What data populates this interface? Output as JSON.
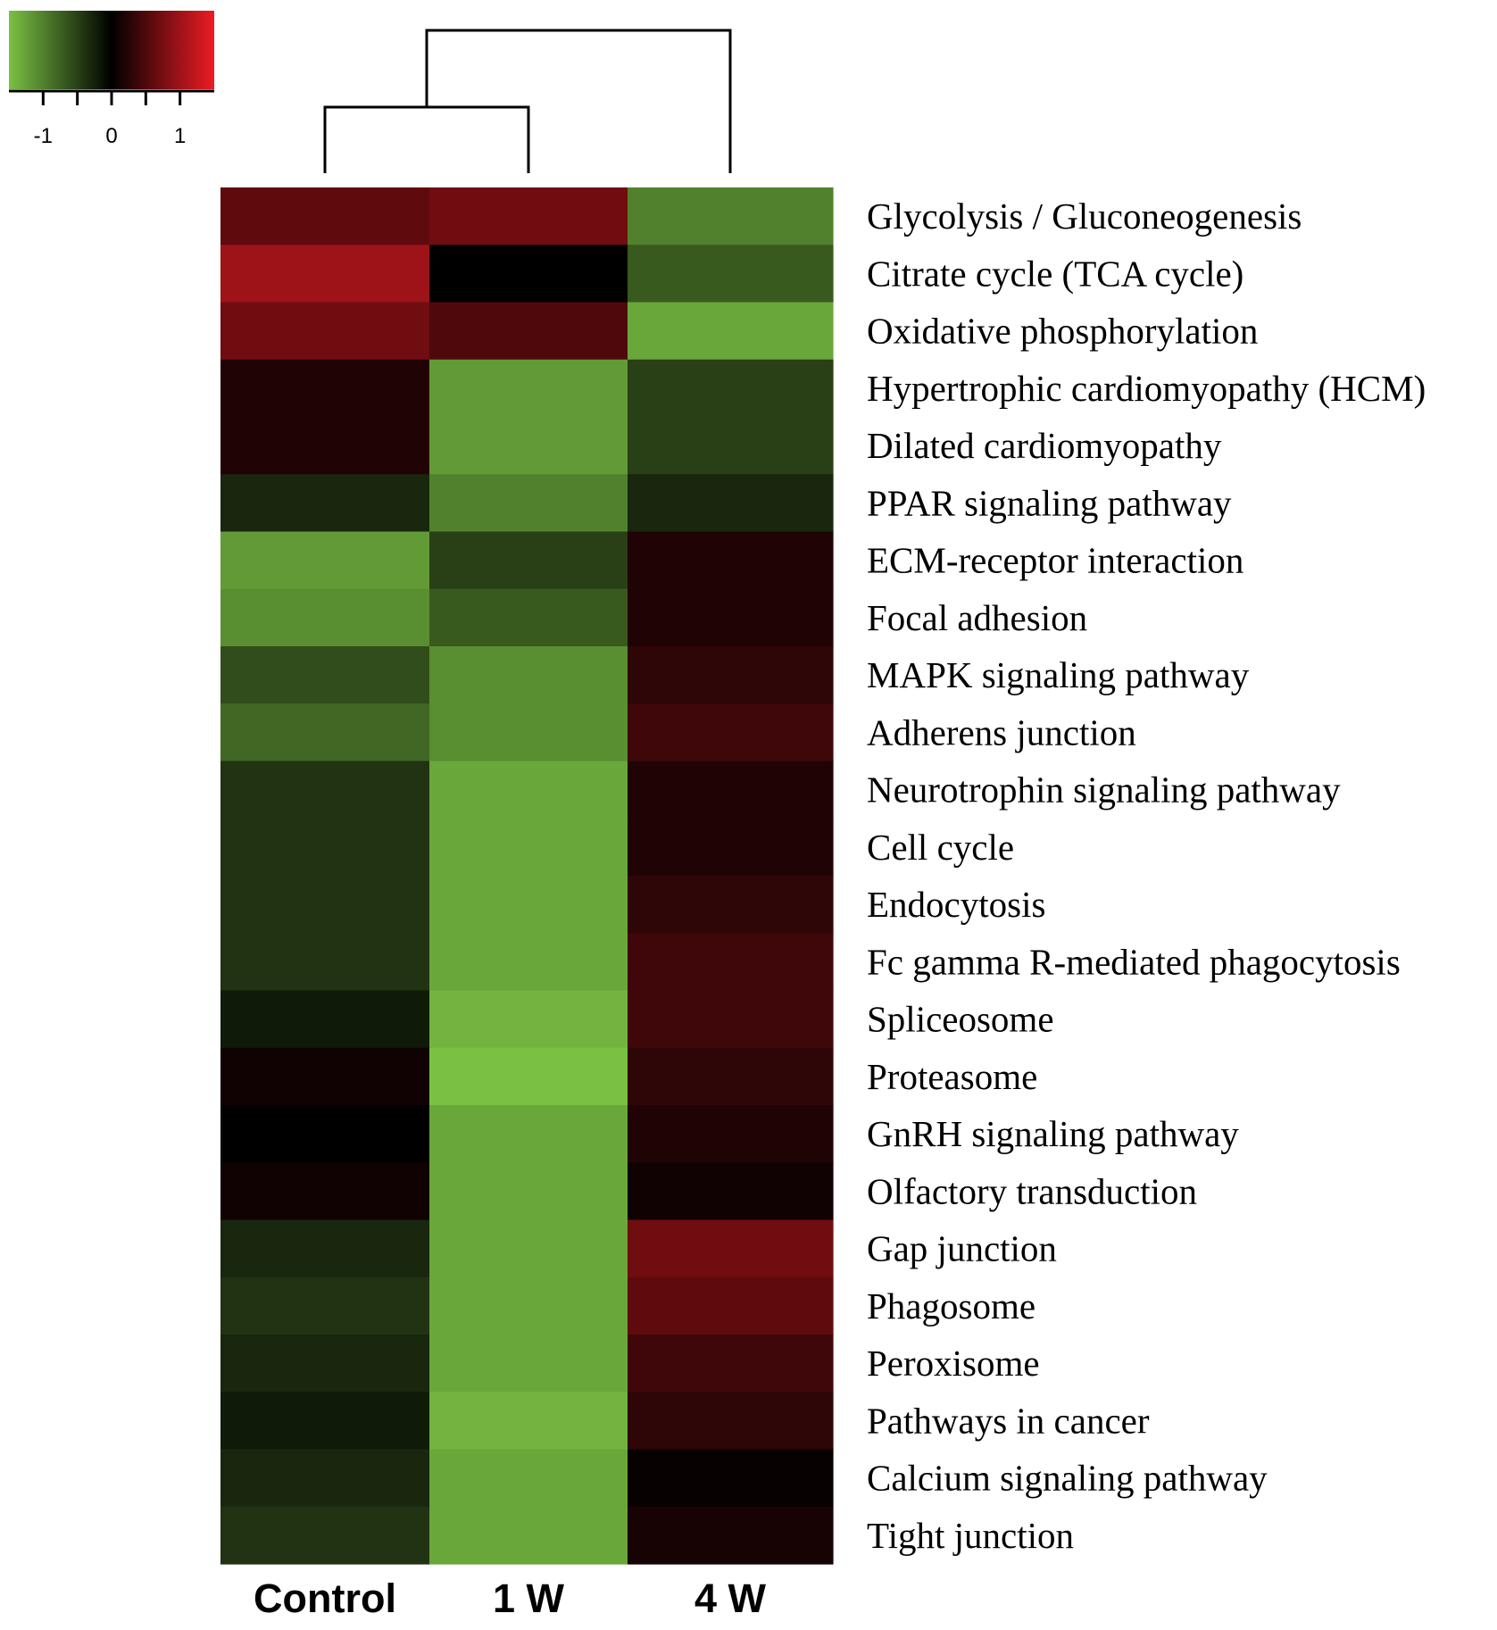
{
  "chart_data": {
    "type": "heatmap",
    "columns": [
      "Control",
      "1 W",
      "4 W"
    ],
    "rows": [
      "Glycolysis / Gluconeogenesis",
      "Citrate cycle (TCA cycle)",
      "Oxidative phosphorylation",
      "Hypertrophic cardiomyopathy (HCM)",
      "Dilated cardiomyopathy",
      "PPAR signaling pathway",
      "ECM-receptor interaction",
      "Focal adhesion",
      "MAPK signaling pathway",
      "Adherens junction",
      "Neurotrophin signaling pathway",
      "Cell cycle",
      "Endocytosis",
      "Fc gamma R-mediated phagocytosis",
      "Spliceosome",
      "Proteasome",
      "GnRH signaling pathway",
      "Olfactory transduction",
      "Gap junction",
      "Phagosome",
      "Peroxisome",
      "Pathways in cancer",
      "Calcium signaling pathway",
      "Tight junction"
    ],
    "values": [
      [
        0.6,
        0.7,
        -1.0
      ],
      [
        1.0,
        0.0,
        -0.7
      ],
      [
        0.7,
        0.5,
        -1.3
      ],
      [
        0.2,
        -1.2,
        -0.5
      ],
      [
        0.2,
        -1.2,
        -0.5
      ],
      [
        -0.3,
        -1.0,
        -0.3
      ],
      [
        -1.2,
        -0.5,
        0.2
      ],
      [
        -1.1,
        -0.7,
        0.2
      ],
      [
        -0.6,
        -1.1,
        0.3
      ],
      [
        -0.8,
        -1.1,
        0.4
      ],
      [
        -0.4,
        -1.3,
        0.2
      ],
      [
        -0.4,
        -1.3,
        0.2
      ],
      [
        -0.4,
        -1.3,
        0.3
      ],
      [
        -0.4,
        -1.3,
        0.4
      ],
      [
        -0.2,
        -1.4,
        0.4
      ],
      [
        0.1,
        -1.5,
        0.3
      ],
      [
        0.0,
        -1.3,
        0.2
      ],
      [
        0.1,
        -1.3,
        0.1
      ],
      [
        -0.3,
        -1.3,
        0.7
      ],
      [
        -0.4,
        -1.3,
        0.6
      ],
      [
        -0.3,
        -1.3,
        0.4
      ],
      [
        -0.2,
        -1.4,
        0.3
      ],
      [
        -0.3,
        -1.3,
        0.05
      ],
      [
        -0.4,
        -1.3,
        0.15
      ]
    ],
    "color_scale": {
      "min_color": "#7ac143",
      "mid_color": "#000000",
      "max_color": "#ed1c24",
      "range": [
        -1.5,
        1.5
      ],
      "ticks": [
        -1,
        0,
        1
      ],
      "tick_labels": [
        "-1",
        "0",
        "1"
      ]
    },
    "dendrogram": "columns: Control and 1 W joined first, then 4 W",
    "legend_placement": "top-left"
  }
}
